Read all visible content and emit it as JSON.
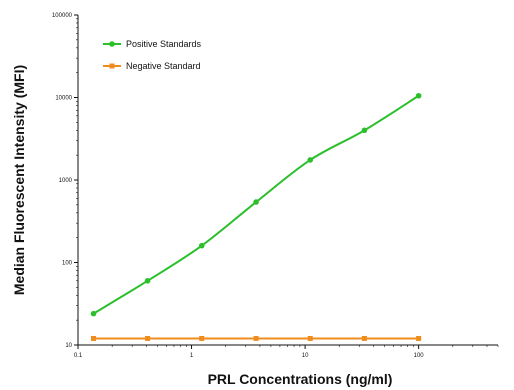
{
  "chart_data": {
    "type": "scatter",
    "xlabel": "PRL Concentrations (ng/ml)",
    "ylabel": "Median  Fluorescent Intensity  (MFI)",
    "x_scale": "log",
    "y_scale": "log",
    "xlim": [
      0.1,
      500
    ],
    "ylim": [
      10,
      100000
    ],
    "x_ticks": [
      0.1,
      1,
      10,
      100
    ],
    "x_tick_labels": [
      "0.1",
      "1",
      "10",
      "100"
    ],
    "y_ticks": [
      10,
      100,
      1000,
      10000,
      100000
    ],
    "y_tick_labels": [
      "10",
      "100",
      "1000",
      "10000",
      "100000"
    ],
    "grid": false,
    "legend_position": "top-left",
    "series": [
      {
        "name": "Positive Standards",
        "color": "#2bbf2b",
        "marker": "circle",
        "x": [
          0.137,
          0.41,
          1.23,
          3.7,
          11.1,
          33.3,
          100
        ],
        "y": [
          24,
          60,
          160,
          540,
          1750,
          4000,
          10500
        ],
        "fit": "curve"
      },
      {
        "name": "Negative Standard",
        "color": "#f08c1e",
        "marker": "square",
        "x": [
          0.137,
          0.41,
          1.23,
          3.7,
          11.1,
          33.3,
          100
        ],
        "y": [
          12,
          12,
          12,
          12,
          12,
          12,
          12
        ],
        "fit": "line"
      }
    ]
  }
}
